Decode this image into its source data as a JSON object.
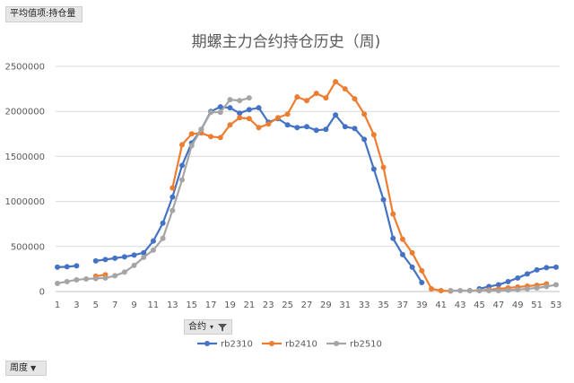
{
  "pivot": {
    "values_field": "平均值项:持仓量",
    "filter_field": "合约",
    "axis_field": "周度"
  },
  "chart_data": {
    "type": "line",
    "title": "期螺主力合约持仓历史（周)",
    "x": [
      1,
      2,
      3,
      4,
      5,
      6,
      7,
      8,
      9,
      10,
      11,
      12,
      13,
      14,
      15,
      16,
      17,
      18,
      19,
      20,
      21,
      22,
      23,
      24,
      25,
      26,
      27,
      28,
      29,
      30,
      31,
      32,
      33,
      34,
      35,
      36,
      37,
      38,
      39,
      40,
      41,
      42,
      43,
      44,
      45,
      46,
      47,
      48,
      49,
      50,
      51,
      52,
      53
    ],
    "x_tick_labels": [
      "1",
      "3",
      "5",
      "7",
      "9",
      "11",
      "13",
      "15",
      "17",
      "19",
      "21",
      "23",
      "25",
      "27",
      "29",
      "31",
      "33",
      "35",
      "37",
      "39",
      "41",
      "43",
      "45",
      "47",
      "49",
      "51",
      "53"
    ],
    "ylim": [
      0,
      2500000
    ],
    "y_ticks": [
      0,
      500000,
      1000000,
      1500000,
      2000000,
      2500000
    ],
    "y_tick_labels": [
      "0",
      "500000",
      "1000000",
      "1500000",
      "2000000",
      "2500000"
    ],
    "grid": true,
    "legend_position": "bottom",
    "series": [
      {
        "name": "rb2310",
        "color": "#4472c4",
        "values": [
          270000,
          275000,
          285000,
          null,
          340000,
          355000,
          370000,
          385000,
          405000,
          430000,
          560000,
          760000,
          1050000,
          1400000,
          1650000,
          1800000,
          2000000,
          2050000,
          2040000,
          1980000,
          2020000,
          2040000,
          1880000,
          1920000,
          1850000,
          1820000,
          1830000,
          1790000,
          1800000,
          1960000,
          1830000,
          1810000,
          1690000,
          1360000,
          1020000,
          590000,
          410000,
          270000,
          100000,
          null,
          null,
          null,
          null,
          null,
          30000,
          55000,
          75000,
          110000,
          150000,
          195000,
          240000,
          265000,
          270000
        ]
      },
      {
        "name": "rb2410",
        "color": "#ed7d31",
        "values": [
          null,
          null,
          null,
          null,
          170000,
          185000,
          null,
          null,
          null,
          null,
          null,
          null,
          1150000,
          1630000,
          1750000,
          1760000,
          1720000,
          1710000,
          1850000,
          1930000,
          1920000,
          1820000,
          1860000,
          1930000,
          1970000,
          2160000,
          2120000,
          2200000,
          2150000,
          2330000,
          2250000,
          2140000,
          1970000,
          1740000,
          1380000,
          860000,
          580000,
          430000,
          230000,
          30000,
          10000,
          5000,
          null,
          10000,
          10000,
          20000,
          30000,
          40000,
          50000,
          60000,
          70000,
          85000,
          null
        ]
      },
      {
        "name": "rb2510",
        "color": "#a5a5a5",
        "values": [
          90000,
          110000,
          130000,
          140000,
          145000,
          150000,
          175000,
          215000,
          290000,
          380000,
          460000,
          590000,
          900000,
          1240000,
          1620000,
          1800000,
          1990000,
          1990000,
          2130000,
          2120000,
          2150000,
          null,
          null,
          null,
          null,
          null,
          null,
          null,
          null,
          null,
          null,
          null,
          null,
          null,
          null,
          null,
          null,
          null,
          null,
          null,
          null,
          10000,
          10000,
          10000,
          10000,
          10000,
          10000,
          15000,
          20000,
          30000,
          40000,
          55000,
          75000
        ]
      }
    ]
  }
}
